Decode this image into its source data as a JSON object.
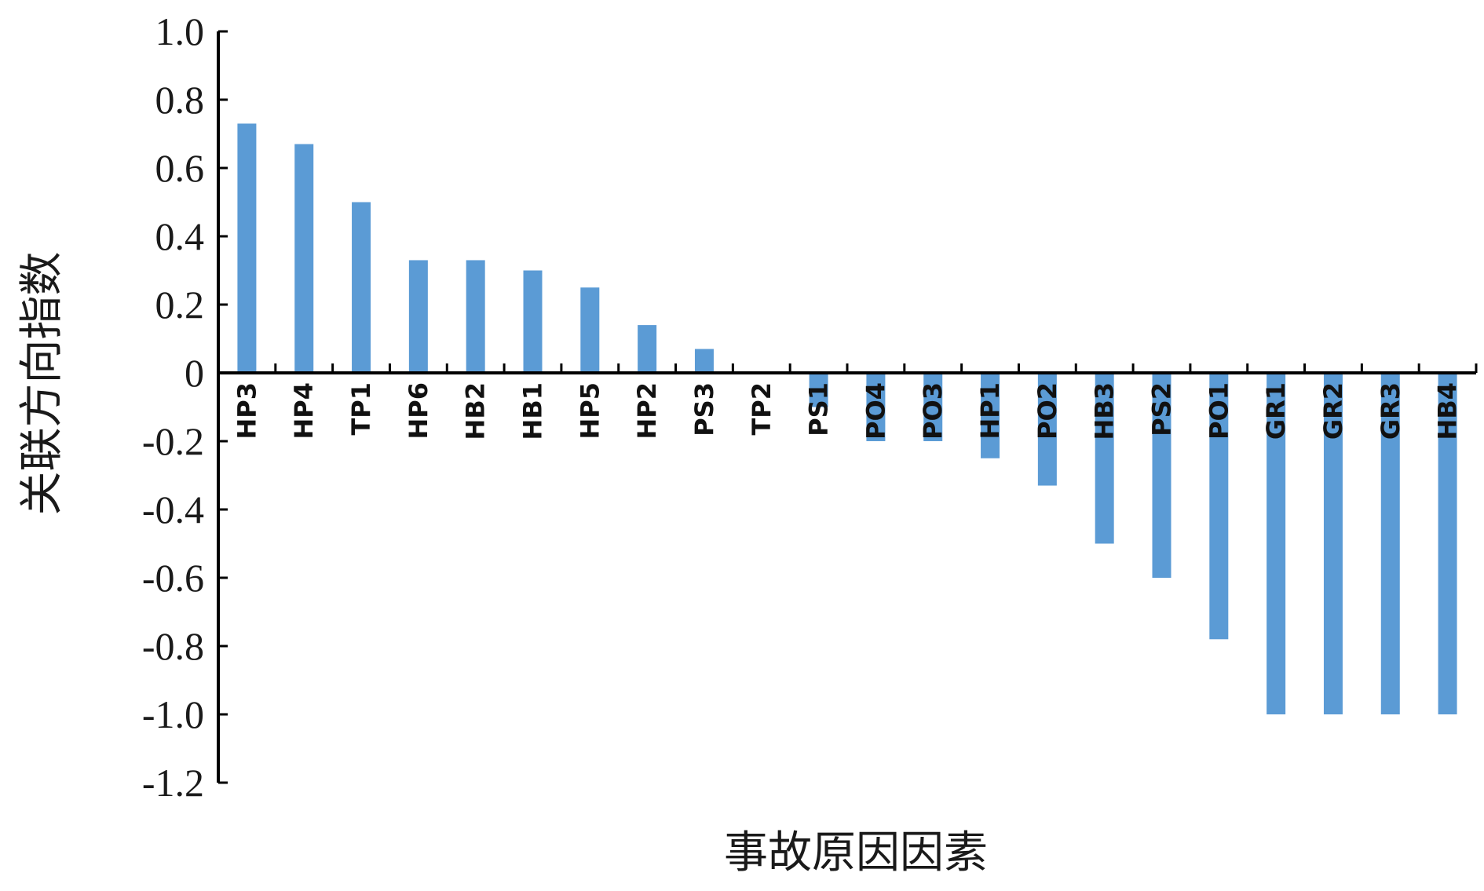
{
  "chart_data": {
    "type": "bar",
    "title": "",
    "xlabel": "事故原因因素",
    "ylabel": "关联方向指数",
    "ylim": [
      -1.2,
      1.0
    ],
    "yticks": [
      1.0,
      0.8,
      0.6,
      0.4,
      0.2,
      0,
      -0.2,
      -0.4,
      -0.6,
      -0.8,
      -1.0,
      -1.2
    ],
    "ytick_labels": [
      "1.0",
      "0.8",
      "0.6",
      "0.4",
      "0.2",
      "0",
      "-0.2",
      "-0.4",
      "-0.6",
      "-0.8",
      "-1.0",
      "-1.2"
    ],
    "categories": [
      "HP3",
      "HP4",
      "TP1",
      "HP6",
      "HB2",
      "HB1",
      "HP5",
      "HP2",
      "PS3",
      "TP2",
      "PS1",
      "PO4",
      "PO3",
      "HP1",
      "PO2",
      "HB3",
      "PS2",
      "PO1",
      "GR1",
      "GR2",
      "GR3",
      "HB4"
    ],
    "values": [
      0.73,
      0.67,
      0.5,
      0.33,
      0.33,
      0.3,
      0.25,
      0.14,
      0.07,
      0,
      -0.1,
      -0.2,
      -0.2,
      -0.25,
      -0.33,
      -0.5,
      -0.6,
      -0.78,
      -1.0,
      -1.0,
      -1.0,
      -1.0
    ],
    "bar_color": "#5B9BD5",
    "grid": false,
    "legend": "none"
  }
}
